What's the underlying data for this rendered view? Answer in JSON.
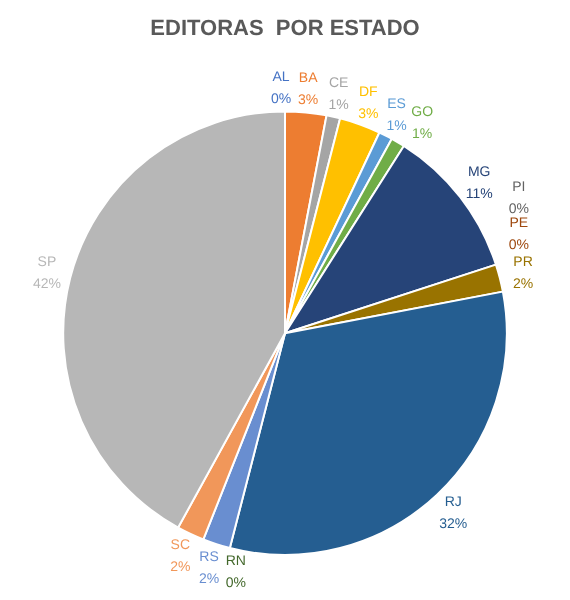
{
  "chart_data": {
    "type": "pie",
    "title": "EDITORAS  POR ESTADO",
    "categories": [
      "AL",
      "BA",
      "CE",
      "DF",
      "ES",
      "GO",
      "MG",
      "PE",
      "PI",
      "PR",
      "RJ",
      "RN",
      "RS",
      "SC",
      "SP"
    ],
    "values": [
      0,
      3,
      1,
      3,
      1,
      1,
      11,
      0,
      0,
      2,
      32,
      0,
      2,
      2,
      42
    ],
    "value_labels": [
      "0%",
      "3%",
      "1%",
      "3%",
      "1%",
      "1%",
      "11%",
      "0%",
      "0%",
      "2%",
      "32%",
      "0%",
      "2%",
      "2%",
      "42%"
    ],
    "colors": [
      "#4472c4",
      "#ed7d31",
      "#a5a5a5",
      "#ffc000",
      "#5b9bd5",
      "#70ad47",
      "#264478",
      "#9e480e",
      "#636363",
      "#997300",
      "#255e91",
      "#43682b",
      "#698ed0",
      "#f1975a",
      "#b7b7b7"
    ],
    "legend": false
  }
}
